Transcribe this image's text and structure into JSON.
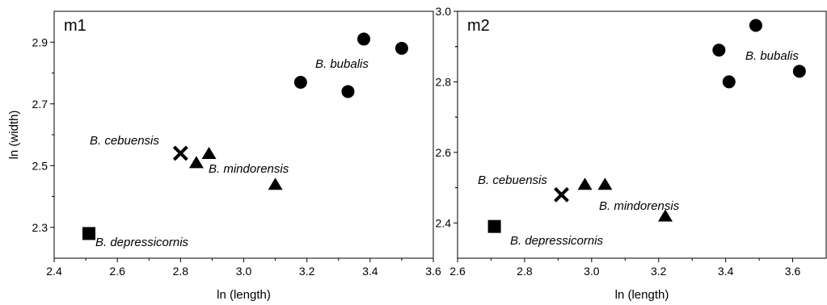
{
  "chart_data": [
    {
      "type": "scatter",
      "title": "m1",
      "xlabel": "ln (length)",
      "ylabel": "ln (width)",
      "xlim": [
        2.4,
        3.6
      ],
      "ylim": [
        2.2,
        3.0
      ],
      "xticks": [
        "2.4",
        "2.6",
        "2.8",
        "3.0",
        "3.2",
        "3.4",
        "3.6"
      ],
      "yticks": [
        "2.3",
        "2.5",
        "2.7",
        "2.9"
      ],
      "series": [
        {
          "name": "B. bubalis",
          "marker": "circle",
          "points": [
            [
              3.18,
              2.77
            ],
            [
              3.33,
              2.74
            ],
            [
              3.38,
              2.91
            ],
            [
              3.5,
              2.88
            ]
          ]
        },
        {
          "name": "B. cebuensis",
          "marker": "cross",
          "points": [
            [
              2.8,
              2.54
            ]
          ]
        },
        {
          "name": "B. mindorensis",
          "marker": "triangle",
          "points": [
            [
              2.85,
              2.51
            ],
            [
              2.89,
              2.54
            ],
            [
              3.1,
              2.44
            ]
          ]
        },
        {
          "name": "B. depressicornis",
          "marker": "square",
          "points": [
            [
              2.51,
              2.28
            ]
          ]
        }
      ],
      "annotations": [
        "B. bubalis",
        "B. cebuensis",
        "B. mindorensis",
        "B. depressicornis"
      ],
      "grid": false
    },
    {
      "type": "scatter",
      "title": "m2",
      "xlabel": "ln (length)",
      "ylabel": "",
      "xlim": [
        2.6,
        3.7
      ],
      "ylim": [
        2.3,
        3.0
      ],
      "xticks": [
        "2.6",
        "2.8",
        "3.0",
        "3.2",
        "3.4",
        "3.6"
      ],
      "yticks": [
        "2.4",
        "2.6",
        "2.8",
        "3.0"
      ],
      "series": [
        {
          "name": "B. bubalis",
          "marker": "circle",
          "points": [
            [
              3.38,
              2.89
            ],
            [
              3.41,
              2.8
            ],
            [
              3.49,
              2.96
            ],
            [
              3.62,
              2.83
            ]
          ]
        },
        {
          "name": "B. cebuensis",
          "marker": "cross",
          "points": [
            [
              2.91,
              2.48
            ]
          ]
        },
        {
          "name": "B. mindorensis",
          "marker": "triangle",
          "points": [
            [
              2.98,
              2.51
            ],
            [
              3.04,
              2.51
            ],
            [
              3.22,
              2.42
            ]
          ]
        },
        {
          "name": "B. depressicornis",
          "marker": "square",
          "points": [
            [
              2.71,
              2.39
            ]
          ]
        }
      ],
      "annotations": [
        "B. bubalis",
        "B. cebuensis",
        "B. mindorensis",
        "B. depressicornis"
      ],
      "grid": false
    }
  ]
}
